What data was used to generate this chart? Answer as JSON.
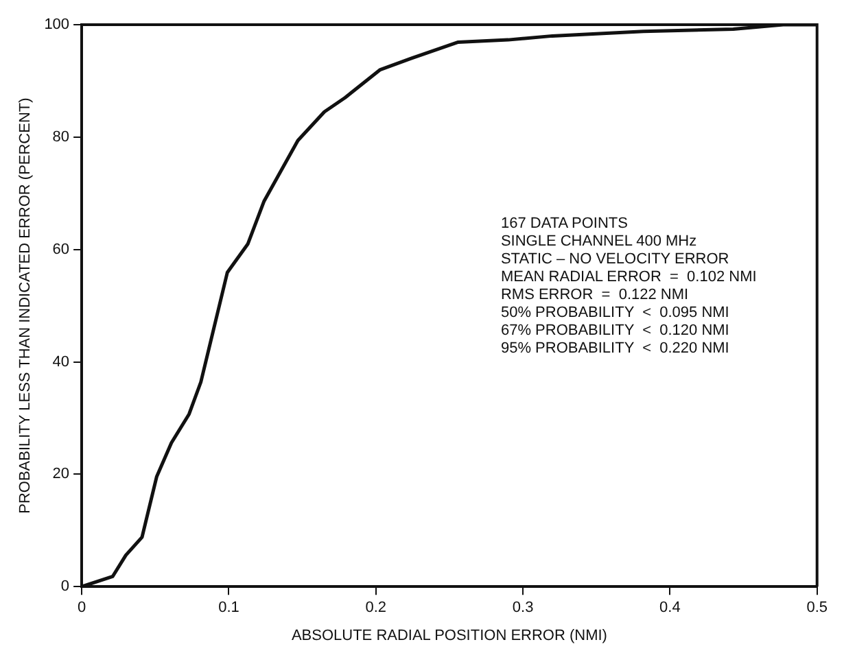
{
  "chart_data": {
    "type": "line",
    "xlabel": "ABSOLUTE RADIAL POSITION ERROR (NMI)",
    "ylabel": "PROBABILITY LESS THAN INDICATED ERROR (PERCENT)",
    "series": [
      {
        "color": "#111111",
        "x": [
          0,
          0.021,
          0.03,
          0.041,
          0.051,
          0.061,
          0.073,
          0.081,
          0.099,
          0.113,
          0.124,
          0.147,
          0.165,
          0.179,
          0.203,
          0.224,
          0.256,
          0.29,
          0.32,
          0.382,
          0.443,
          0.477,
          0.5
        ],
        "values": [
          0,
          1.8,
          5.6,
          8.8,
          19.6,
          25.6,
          30.7,
          36.4,
          55.9,
          61,
          68.6,
          79.4,
          84.5,
          87,
          92,
          94,
          96.9,
          97.3,
          98,
          98.8,
          99.2,
          100,
          100
        ]
      }
    ],
    "xlim": [
      0,
      0.5
    ],
    "xticks": [
      0,
      0.1,
      0.2,
      0.3,
      0.4,
      0.5
    ],
    "ylim": [
      0,
      100
    ],
    "yticks": [
      0,
      20,
      40,
      60,
      80,
      100
    ],
    "grid": false,
    "legend": false,
    "marker": "none",
    "line_style": "solid",
    "annotations": [
      "167 DATA POINTS",
      "SINGLE CHANNEL 400 MHz",
      "STATIC – NO VELOCITY ERROR",
      "MEAN RADIAL ERROR  =  0.102 NMI",
      "RMS ERROR  =  0.122 NMI",
      "50% PROBABILITY  <  0.095 NMI",
      "67% PROBABILITY  <  0.120 NMI",
      "95% PROBABILITY  <  0.220 NMI"
    ]
  }
}
